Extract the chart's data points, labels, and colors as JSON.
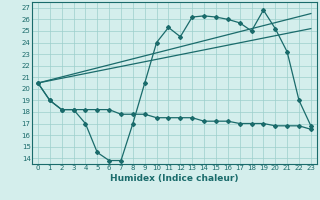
{
  "xlabel": "Humidex (Indice chaleur)",
  "bg_color": "#d4eeec",
  "line_color": "#1a6b6b",
  "grid_color": "#9ccfcc",
  "xlim": [
    -0.5,
    23.5
  ],
  "ylim": [
    13.5,
    27.5
  ],
  "yticks": [
    14,
    15,
    16,
    17,
    18,
    19,
    20,
    21,
    22,
    23,
    24,
    25,
    26,
    27
  ],
  "xticks": [
    0,
    1,
    2,
    3,
    4,
    5,
    6,
    7,
    8,
    9,
    10,
    11,
    12,
    13,
    14,
    15,
    16,
    17,
    18,
    19,
    20,
    21,
    22,
    23
  ],
  "series1_x": [
    0,
    1,
    2,
    3,
    4,
    5,
    6,
    7,
    8,
    9,
    10,
    11,
    12,
    13,
    14,
    15,
    16,
    17,
    18,
    19,
    20,
    21,
    22,
    23
  ],
  "series1_y": [
    20.5,
    19.0,
    18.2,
    18.2,
    17.0,
    14.5,
    13.8,
    13.8,
    17.0,
    20.5,
    24.0,
    25.3,
    24.5,
    26.2,
    26.3,
    26.2,
    26.0,
    25.7,
    25.0,
    26.8,
    25.2,
    23.2,
    19.0,
    16.8
  ],
  "series2_x": [
    0,
    1,
    2,
    3,
    4,
    5,
    6,
    7,
    8,
    9,
    10,
    11,
    12,
    13,
    14,
    15,
    16,
    17,
    18,
    19,
    20,
    21,
    22,
    23
  ],
  "series2_y": [
    20.5,
    19.0,
    18.2,
    18.2,
    18.2,
    18.2,
    18.2,
    17.8,
    17.8,
    17.8,
    17.5,
    17.5,
    17.5,
    17.5,
    17.2,
    17.2,
    17.2,
    17.0,
    17.0,
    17.0,
    16.8,
    16.8,
    16.8,
    16.5
  ],
  "series3_x": [
    0,
    23
  ],
  "series3_y": [
    20.5,
    26.5
  ],
  "series4_x": [
    0,
    23
  ],
  "series4_y": [
    20.5,
    25.2
  ]
}
